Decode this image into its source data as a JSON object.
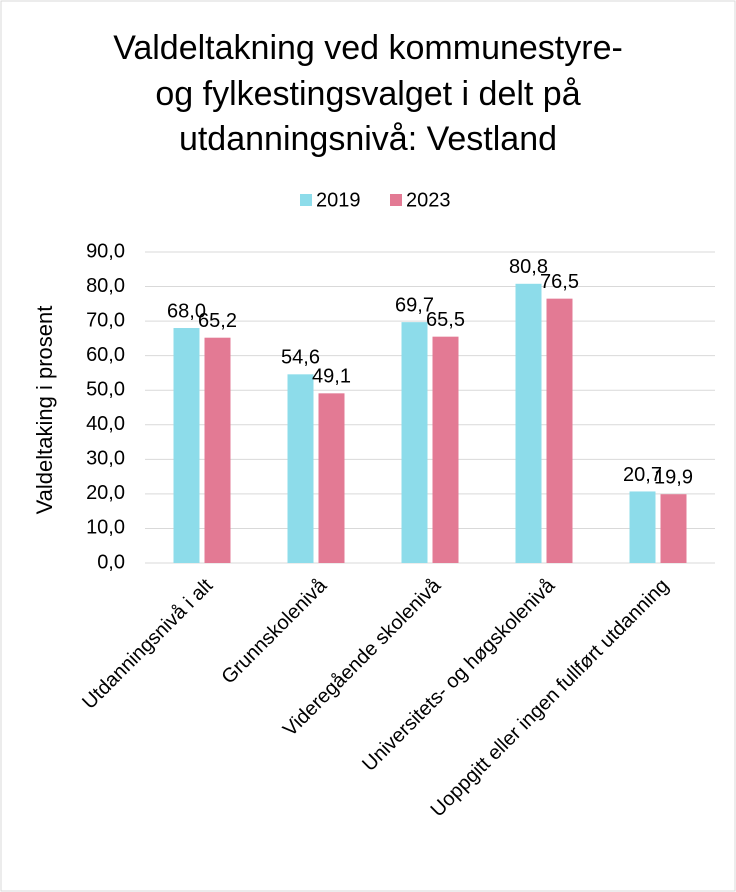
{
  "chart_data": {
    "type": "bar",
    "title": [
      "Valdeltakning ved kommunestyre-",
      "og fylkestingsvalget i delt på",
      "utdanningsnivå: Vestland"
    ],
    "y_label": "Valdeltaking i prosent",
    "categories": [
      "Utdanningsnivå i alt",
      "Grunnskolenivå",
      "Videregående skolenivå",
      "Universitets- og høgskolenivå",
      "Uoppgitt eller ingen fullført utdanning"
    ],
    "series": [
      {
        "name": "2019",
        "color": "#8ddcea",
        "values": [
          68.0,
          54.6,
          69.7,
          80.8,
          20.7
        ],
        "value_labels": [
          "68,0",
          "54,6",
          "69,7",
          "80,8",
          "20,7"
        ]
      },
      {
        "name": "2023",
        "color": "#e37a94",
        "values": [
          65.2,
          49.1,
          65.5,
          76.5,
          19.9
        ],
        "value_labels": [
          "65,2",
          "49,1",
          "65,5",
          "76,5",
          "19,9"
        ]
      }
    ],
    "ylim": [
      0,
      90
    ],
    "yticks": [
      {
        "value": 0,
        "label": "0,0"
      },
      {
        "value": 10,
        "label": "10,0"
      },
      {
        "value": 20,
        "label": "20,0"
      },
      {
        "value": 30,
        "label": "30,0"
      },
      {
        "value": 40,
        "label": "40,0"
      },
      {
        "value": 50,
        "label": "50,0"
      },
      {
        "value": 60,
        "label": "60,0"
      },
      {
        "value": 70,
        "label": "70,0"
      },
      {
        "value": 80,
        "label": "80,0"
      },
      {
        "value": 90,
        "label": "90,0"
      }
    ],
    "grid": true,
    "legend": "top"
  }
}
